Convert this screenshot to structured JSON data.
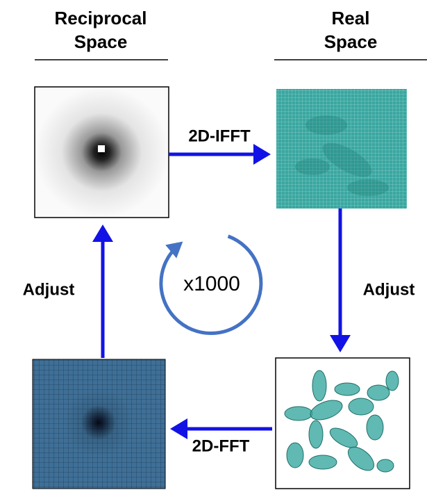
{
  "headers": [
    {
      "lines": [
        "Reciprocal",
        "Space"
      ]
    },
    {
      "lines": [
        "Real",
        "Space"
      ]
    }
  ],
  "edges": [
    {
      "label": "2D-IFFT"
    },
    {
      "label": "Adjust"
    },
    {
      "label": "2D-FFT"
    },
    {
      "label": "Adjust"
    }
  ],
  "center": {
    "label": "x1000"
  }
}
